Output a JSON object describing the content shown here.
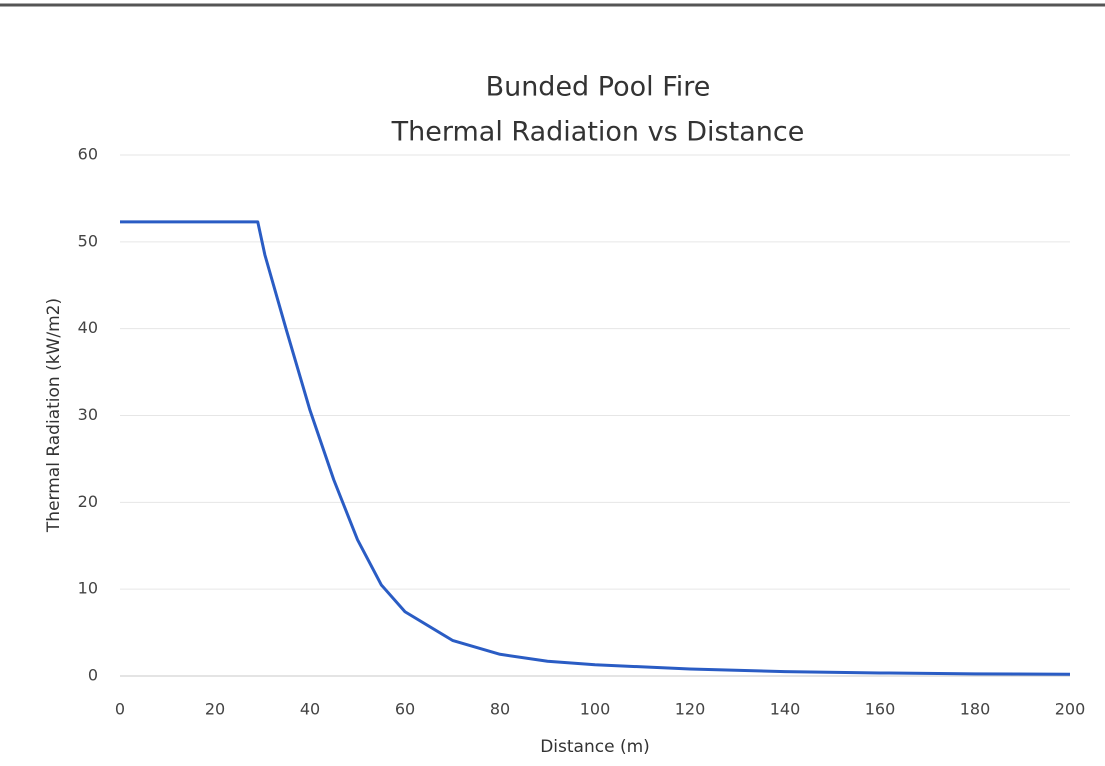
{
  "chart_data": {
    "type": "line",
    "title": "Bunded Pool Fire",
    "subtitle": "Thermal Radiation vs Distance",
    "x_label": "Distance (m)",
    "y_label": "Thermal Radiation (kW/m2)",
    "x": [
      0,
      29,
      30.5,
      35,
      40,
      45,
      50,
      55,
      60,
      70,
      80,
      90,
      100,
      120,
      140,
      160,
      180,
      200
    ],
    "series": [
      {
        "name": "Thermal Radiation",
        "color": "#2a5cc4",
        "values": [
          52.3,
          52.3,
          48.5,
          39.9,
          30.6,
          22.6,
          15.7,
          10.5,
          7.4,
          4.1,
          2.5,
          1.7,
          1.3,
          0.8,
          0.5,
          0.35,
          0.25,
          0.2
        ]
      }
    ],
    "xlim": [
      0,
      200
    ],
    "xticks": [
      0,
      20,
      40,
      60,
      80,
      100,
      120,
      140,
      160,
      180,
      200
    ],
    "ylim": [
      0,
      60
    ],
    "yticks": [
      0,
      10,
      20,
      30,
      40,
      50,
      60
    ],
    "grid": true
  }
}
